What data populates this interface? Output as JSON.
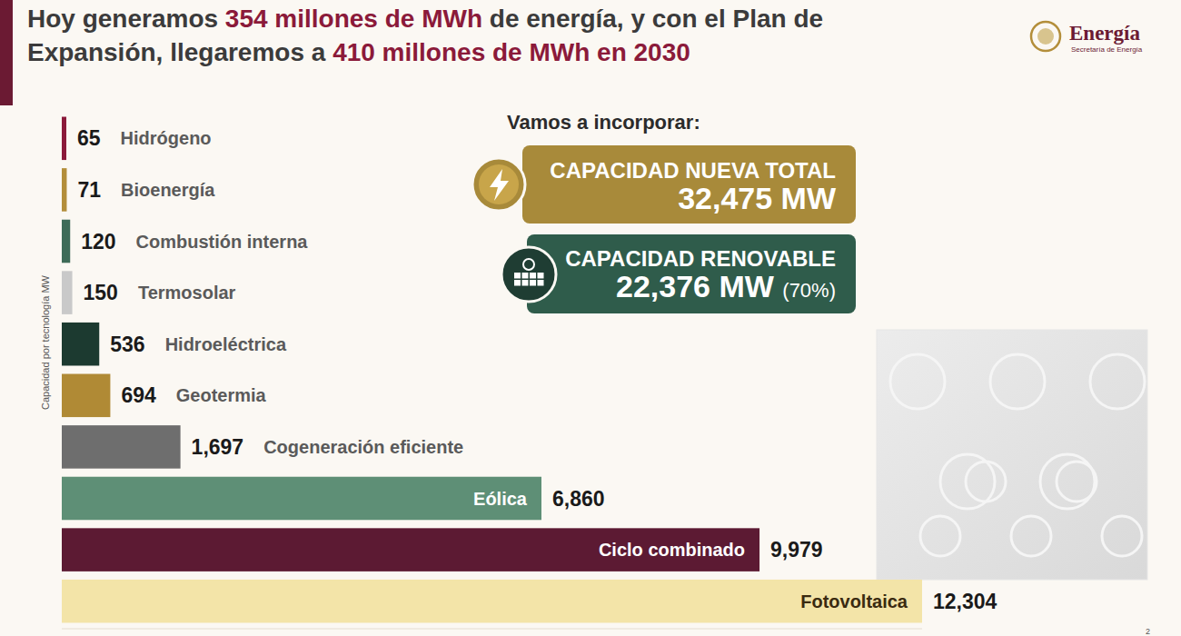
{
  "header": {
    "title": [
      "Hoy generamos ",
      "354 millones de MWh",
      " de energía, y con el Plan de Expansión, llegaremos a ",
      "410 millones de MWh en 2030"
    ]
  },
  "logo": {
    "name": "Energía",
    "subtitle": "Secretaría de Energía"
  },
  "panel": {
    "heading": "Vamos a incorporar:",
    "items": [
      {
        "label": "CAPACIDAD NUEVA TOTAL",
        "value": "32,475 MW"
      },
      {
        "label": "CAPACIDAD RENOVABLE",
        "value": "22,376 MW",
        "share": "(70%)"
      }
    ]
  },
  "page_number": "2",
  "chart_data": {
    "type": "bar",
    "orientation": "horizontal",
    "ylabel": "Capacidad por tecnología MW",
    "categories": [
      "Hidrógeno",
      "Bioenergía",
      "Combustión interna",
      "Termosolar",
      "Hidroeléctrica",
      "Geotermia",
      "Cogeneración eficiente",
      "Eólica",
      "Ciclo combinado",
      "Fotovoltaica"
    ],
    "values": [
      65,
      71,
      120,
      150,
      536,
      694,
      1697,
      6860,
      9979,
      12304
    ],
    "value_labels": [
      "65",
      "71",
      "120",
      "150",
      "536",
      "694",
      "1,697",
      "6,860",
      "9,979",
      "12,304"
    ],
    "colors": [
      "#8b1a3a",
      "#b38e3a",
      "#3e6b58",
      "#c9c9c9",
      "#1c3a30",
      "#b08a35",
      "#6e6e6e",
      "#5e8f76",
      "#5c1a33",
      "#f3e4a8"
    ],
    "xlim": [
      0,
      12304
    ],
    "data_labels": true,
    "tick_labels": false,
    "grid": false
  }
}
